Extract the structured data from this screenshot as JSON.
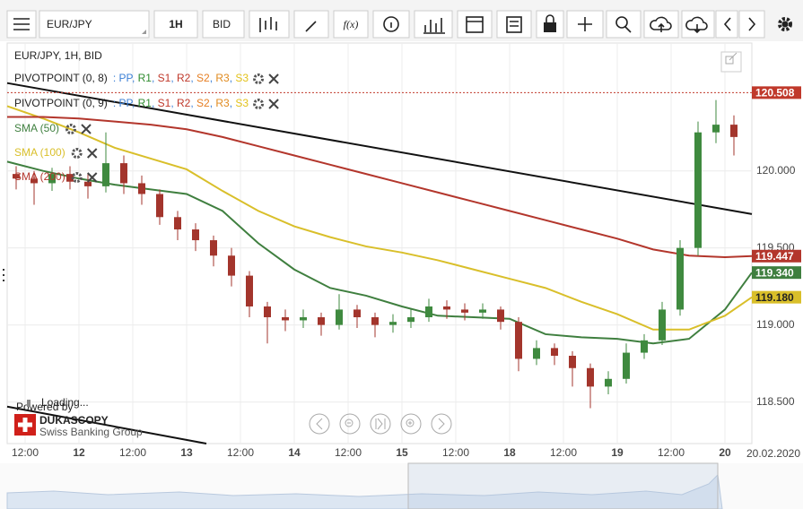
{
  "toolbar": {
    "symbol": "EUR/JPY",
    "timeframe": "1H",
    "side": "BID",
    "function_button": "f(x)"
  },
  "chart_data": {
    "type": "candlestick",
    "title": "EUR/JPY, 1H, BID",
    "up_color": "#3f8a3f",
    "down_color": "#a3352c",
    "x": [
      2,
      6,
      10,
      14,
      18,
      22,
      26,
      30,
      34,
      38,
      42,
      46,
      50,
      54,
      58,
      62,
      66,
      70,
      74,
      78,
      82,
      86,
      90,
      94,
      98,
      102,
      106,
      110,
      114,
      118,
      122,
      126,
      130,
      134,
      138,
      142,
      146,
      150,
      154,
      158,
      162
    ],
    "open": [
      119.98,
      119.95,
      119.92,
      119.98,
      119.93,
      119.9,
      120.05,
      119.92,
      119.85,
      119.7,
      119.62,
      119.55,
      119.45,
      119.32,
      119.12,
      119.05,
      119.03,
      119.05,
      119.0,
      119.1,
      119.05,
      119.0,
      119.02,
      119.05,
      119.12,
      119.1,
      119.08,
      119.1,
      119.02,
      118.78,
      118.85,
      118.8,
      118.72,
      118.6,
      118.65,
      118.82,
      118.9,
      119.1,
      119.5,
      120.25,
      120.3
    ],
    "high": [
      120.03,
      120.0,
      120.02,
      120.03,
      119.98,
      120.25,
      120.1,
      119.97,
      119.88,
      119.74,
      119.66,
      119.58,
      119.5,
      119.35,
      119.15,
      119.1,
      119.1,
      119.08,
      119.2,
      119.13,
      119.08,
      119.07,
      119.1,
      119.17,
      119.16,
      119.14,
      119.14,
      119.12,
      119.05,
      118.9,
      118.88,
      118.83,
      118.75,
      118.7,
      118.88,
      118.94,
      119.15,
      119.55,
      120.32,
      120.46,
      120.36
    ],
    "low": [
      119.88,
      119.78,
      119.87,
      119.88,
      119.82,
      119.86,
      119.85,
      119.78,
      119.65,
      119.55,
      119.48,
      119.38,
      119.25,
      119.05,
      118.88,
      118.96,
      118.98,
      118.93,
      118.97,
      118.98,
      118.92,
      118.95,
      118.98,
      119.02,
      119.04,
      119.03,
      119.04,
      118.97,
      118.7,
      118.74,
      118.74,
      118.6,
      118.46,
      118.55,
      118.62,
      118.78,
      118.87,
      119.06,
      119.45,
      120.18,
      120.1
    ],
    "close": [
      119.95,
      119.92,
      119.98,
      119.93,
      119.9,
      120.05,
      119.92,
      119.85,
      119.7,
      119.62,
      119.55,
      119.45,
      119.32,
      119.12,
      119.05,
      119.03,
      119.05,
      119.0,
      119.1,
      119.05,
      119.0,
      119.02,
      119.05,
      119.12,
      119.1,
      119.08,
      119.1,
      119.02,
      118.78,
      118.85,
      118.8,
      118.72,
      118.6,
      118.65,
      118.82,
      118.9,
      119.1,
      119.5,
      120.25,
      120.3,
      120.22
    ],
    "series": [
      {
        "name": "SMA (50)",
        "color": "#3f7f3f",
        "x": [
          0,
          8,
          16,
          24,
          32,
          40,
          48,
          56,
          64,
          72,
          80,
          88,
          96,
          104,
          112,
          120,
          128,
          136,
          144,
          152,
          160,
          166
        ],
        "values": [
          120.06,
          120.0,
          119.95,
          119.91,
          119.88,
          119.85,
          119.74,
          119.53,
          119.36,
          119.24,
          119.19,
          119.12,
          119.06,
          119.05,
          119.04,
          118.94,
          118.92,
          118.91,
          118.88,
          118.91,
          119.1,
          119.34
        ],
        "value_labels": [
          null,
          null,
          null,
          null,
          null,
          null,
          null,
          null,
          null,
          null,
          null,
          null,
          null,
          null,
          null,
          null,
          null,
          null,
          null,
          null,
          null,
          "119.340"
        ]
      },
      {
        "name": "SMA (100)",
        "color": "#d9bf2a",
        "x": [
          0,
          8,
          16,
          24,
          32,
          40,
          48,
          56,
          64,
          72,
          80,
          88,
          96,
          104,
          112,
          120,
          128,
          136,
          144,
          152,
          160,
          166
        ],
        "values": [
          120.42,
          120.34,
          120.25,
          120.15,
          120.08,
          120.01,
          119.87,
          119.74,
          119.64,
          119.57,
          119.51,
          119.47,
          119.42,
          119.36,
          119.3,
          119.24,
          119.15,
          119.07,
          118.97,
          118.97,
          119.06,
          119.18
        ],
        "value_labels": [
          null,
          null,
          null,
          null,
          null,
          null,
          null,
          null,
          null,
          null,
          null,
          null,
          null,
          null,
          null,
          null,
          null,
          null,
          null,
          null,
          null,
          "119.180"
        ]
      },
      {
        "name": "SMA (200)",
        "color": "#b3362c",
        "x": [
          0,
          8,
          16,
          24,
          32,
          40,
          48,
          56,
          64,
          72,
          80,
          88,
          96,
          104,
          112,
          120,
          128,
          136,
          144,
          152,
          160,
          166
        ],
        "values": [
          120.35,
          120.35,
          120.34,
          120.32,
          120.3,
          120.27,
          120.22,
          120.16,
          120.1,
          120.04,
          119.98,
          119.92,
          119.86,
          119.8,
          119.74,
          119.68,
          119.62,
          119.56,
          119.49,
          119.45,
          119.44,
          119.447
        ]
      }
    ],
    "trendlines": [
      {
        "x": [
          0,
          166
        ],
        "values": [
          120.57,
          119.72
        ]
      },
      {
        "x": [
          0,
          44.4
        ],
        "values": [
          118.47,
          118.23
        ]
      }
    ],
    "last_price": 120.508,
    "last_price_color": "#c0392b",
    "indicators": [
      {
        "name": "PIVOTPOINT (0, 8)",
        "tokens": [
          {
            "name": "PP",
            "color": "#3a7fd5"
          },
          {
            "name": "R1",
            "color": "#2e8b2e"
          },
          {
            "name": "S1",
            "color": "#c0392b"
          },
          {
            "name": "R2",
            "color": "#c0392b"
          },
          {
            "name": "S2",
            "color": "#e67e22"
          },
          {
            "name": "R3",
            "color": "#e08a1e"
          },
          {
            "name": "S3",
            "color": "#e3c21a"
          }
        ]
      },
      {
        "name": "PIVOTPOINT (0, 9)",
        "tokens": [
          {
            "name": "PP",
            "color": "#3a7fd5"
          },
          {
            "name": "R1",
            "color": "#2e8b2e"
          },
          {
            "name": "S1",
            "color": "#c0392b"
          },
          {
            "name": "R2",
            "color": "#c0392b"
          },
          {
            "name": "S2",
            "color": "#e67e22"
          },
          {
            "name": "R3",
            "color": "#e08a1e"
          },
          {
            "name": "S3",
            "color": "#e3c21a"
          }
        ]
      }
    ],
    "legend_prefix": ":",
    "legend_separator": ",",
    "xlim": [
      0,
      166
    ],
    "xticks": [
      {
        "value": 4,
        "label": "12:00"
      },
      {
        "value": 16,
        "label": "12"
      },
      {
        "value": 28,
        "label": "12:00"
      },
      {
        "value": 40,
        "label": "13"
      },
      {
        "value": 52,
        "label": "12:00"
      },
      {
        "value": 64,
        "label": "14"
      },
      {
        "value": 76,
        "label": "12:00"
      },
      {
        "value": 88,
        "label": "15"
      },
      {
        "value": 100,
        "label": "12:00"
      },
      {
        "value": 112,
        "label": "18"
      },
      {
        "value": 124,
        "label": "12:00"
      },
      {
        "value": 136,
        "label": "19"
      },
      {
        "value": 148,
        "label": "12:00"
      },
      {
        "value": 160,
        "label": "20"
      }
    ],
    "date_label": "20.02.2020",
    "ylim": [
      118.23,
      120.83
    ],
    "yticks": [
      {
        "value": 118.5,
        "label": "118.500"
      },
      {
        "value": 119,
        "label": "119.000"
      },
      {
        "value": 119.5,
        "label": "119.500"
      },
      {
        "value": 120,
        "label": "120.000"
      }
    ],
    "grid": true
  },
  "watermark": {
    "powered_by": "Powered by",
    "brand": "DUKASCOPY",
    "tagline": "Swiss Banking Group",
    "loading": "Loading..."
  }
}
